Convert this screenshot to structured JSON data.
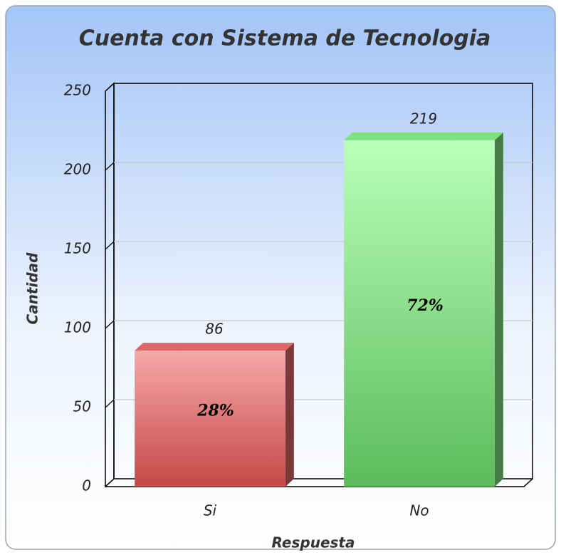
{
  "chart_data": {
    "type": "bar3d",
    "title": "Cuenta con Sistema de Tecnologia",
    "categories": [
      "Si",
      "No"
    ],
    "values": [
      86,
      219
    ],
    "percent_labels": [
      "28%",
      "72%"
    ],
    "colors": [
      "#e06666",
      "#7fe07f"
    ],
    "x_label": "Respuesta",
    "y_label": "Cantidad",
    "ylim": [
      0,
      250
    ],
    "yticks": [
      0,
      50,
      100,
      150,
      200,
      250
    ],
    "grid": true
  }
}
